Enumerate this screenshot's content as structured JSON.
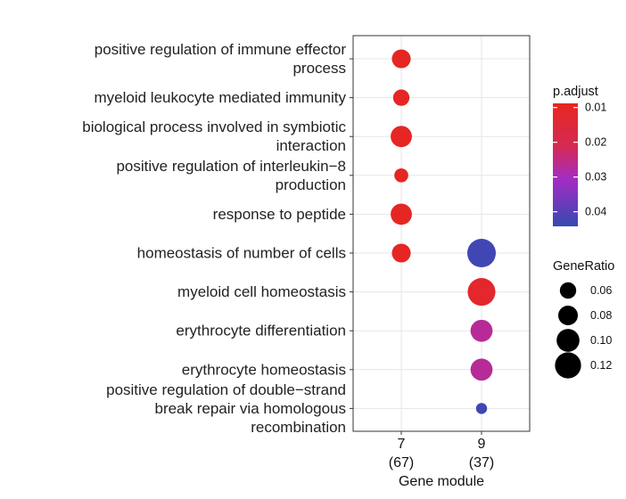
{
  "chart_data": {
    "type": "scatter",
    "xlabel": "Gene module",
    "x_categories": [
      {
        "label": "7",
        "sublabel": "(67)"
      },
      {
        "label": "9",
        "sublabel": "(37)"
      }
    ],
    "y_categories": [
      {
        "lines": [
          "positive regulation of immune effector",
          "process"
        ]
      },
      {
        "lines": [
          "myeloid leukocyte mediated immunity"
        ]
      },
      {
        "lines": [
          "biological process involved in symbiotic",
          "interaction"
        ]
      },
      {
        "lines": [
          "positive regulation of interleukin−8",
          "production"
        ]
      },
      {
        "lines": [
          "response to peptide"
        ]
      },
      {
        "lines": [
          "homeostasis of number of cells"
        ]
      },
      {
        "lines": [
          "myeloid cell homeostasis"
        ]
      },
      {
        "lines": [
          "erythrocyte differentiation"
        ]
      },
      {
        "lines": [
          "erythrocyte homeostasis"
        ]
      },
      {
        "lines": [
          "positive regulation of double−strand",
          "break repair via homologous",
          "recombination"
        ]
      }
    ],
    "points": [
      {
        "x": 0,
        "y": 0,
        "gene_ratio": 0.075,
        "p_adjust": 0.01
      },
      {
        "x": 0,
        "y": 1,
        "gene_ratio": 0.06,
        "p_adjust": 0.01
      },
      {
        "x": 0,
        "y": 2,
        "gene_ratio": 0.09,
        "p_adjust": 0.01
      },
      {
        "x": 0,
        "y": 3,
        "gene_ratio": 0.045,
        "p_adjust": 0.01
      },
      {
        "x": 0,
        "y": 4,
        "gene_ratio": 0.09,
        "p_adjust": 0.01
      },
      {
        "x": 0,
        "y": 5,
        "gene_ratio": 0.075,
        "p_adjust": 0.01
      },
      {
        "x": 1,
        "y": 5,
        "gene_ratio": 0.135,
        "p_adjust": 0.043
      },
      {
        "x": 1,
        "y": 6,
        "gene_ratio": 0.13,
        "p_adjust": 0.012
      },
      {
        "x": 1,
        "y": 7,
        "gene_ratio": 0.095,
        "p_adjust": 0.027
      },
      {
        "x": 1,
        "y": 8,
        "gene_ratio": 0.095,
        "p_adjust": 0.027
      },
      {
        "x": 1,
        "y": 9,
        "gene_ratio": 0.027,
        "p_adjust": 0.043
      }
    ],
    "color_scale": {
      "title": "p.adjust",
      "min": 0.0088,
      "max": 0.0442,
      "low_color": "#E8261E",
      "mid_color": "#A32CC4",
      "high_color": "#3649B2",
      "ticks": [
        {
          "value": 0.01,
          "label": "0.01"
        },
        {
          "value": 0.02,
          "label": "0.02"
        },
        {
          "value": 0.03,
          "label": "0.03"
        },
        {
          "value": 0.04,
          "label": "0.04"
        }
      ]
    },
    "size_scale": {
      "title": "GeneRatio",
      "entries": [
        {
          "value": 0.06,
          "label": "0.06"
        },
        {
          "value": 0.08,
          "label": "0.08"
        },
        {
          "value": 0.1,
          "label": "0.10"
        },
        {
          "value": 0.12,
          "label": "0.12"
        }
      ]
    },
    "grid": true,
    "legend_position": "right"
  }
}
